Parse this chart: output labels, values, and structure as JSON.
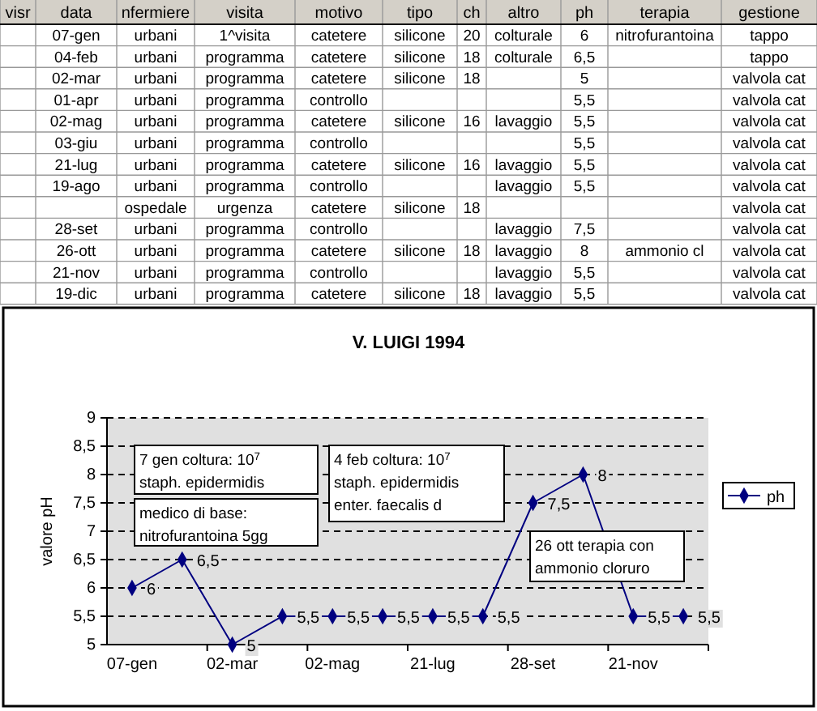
{
  "chart_data": [
    {
      "type": "other",
      "categories": [
        "visr",
        "data",
        "nfermiere",
        "visita",
        "motivo",
        "tipo",
        "ch",
        "altro",
        "ph",
        "terapia",
        "gestione"
      ],
      "cell_labels": [
        [
          null,
          "07-gen",
          "urbani",
          "1^visita",
          "catetere",
          "silicone",
          "20",
          "colturale",
          "6",
          "nitrofurantoina",
          "tappo"
        ],
        [
          null,
          "04-feb",
          "urbani",
          "programma",
          "catetere",
          "silicone",
          "18",
          "colturale",
          "6,5",
          null,
          "tappo"
        ],
        [
          null,
          "02-mar",
          "urbani",
          "programma",
          "catetere",
          "silicone",
          "18",
          null,
          "5",
          null,
          "valvola cat"
        ],
        [
          null,
          "01-apr",
          "urbani",
          "programma",
          "controllo",
          null,
          null,
          null,
          "5,5",
          null,
          "valvola cat"
        ],
        [
          null,
          "02-mag",
          "urbani",
          "programma",
          "catetere",
          "silicone",
          "16",
          "lavaggio",
          "5,5",
          null,
          "valvola cat"
        ],
        [
          null,
          "03-giu",
          "urbani",
          "programma",
          "controllo",
          null,
          null,
          null,
          "5,5",
          null,
          "valvola cat"
        ],
        [
          null,
          "21-lug",
          "urbani",
          "programma",
          "catetere",
          "silicone",
          "16",
          "lavaggio",
          "5,5",
          null,
          "valvola cat"
        ],
        [
          null,
          "19-ago",
          "urbani",
          "programma",
          "controllo",
          null,
          null,
          "lavaggio",
          "5,5",
          null,
          "valvola cat"
        ],
        [
          null,
          null,
          "ospedale",
          "urgenza",
          "catetere",
          "silicone",
          "18",
          null,
          null,
          null,
          "valvola cat"
        ],
        [
          null,
          "28-set",
          "urbani",
          "programma",
          "controllo",
          null,
          null,
          "lavaggio",
          "7,5",
          null,
          "valvola cat"
        ],
        [
          null,
          "26-ott",
          "urbani",
          "programma",
          "catetere",
          "silicone",
          "18",
          "lavaggio",
          "8",
          "ammonio cl",
          "valvola cat"
        ],
        [
          null,
          "21-nov",
          "urbani",
          "programma",
          "controllo",
          null,
          null,
          "lavaggio",
          "5,5",
          null,
          "valvola cat"
        ],
        [
          null,
          "19-dic",
          "urbani",
          "programma",
          "catetere",
          "silicone",
          "18",
          "lavaggio",
          "5,5",
          null,
          "valvola cat"
        ]
      ]
    },
    {
      "type": "line",
      "title": "V. LUIGI 1994",
      "ylabel": "valore pH",
      "categories": [
        "07-gen",
        null,
        "02-mar",
        null,
        "02-mag",
        null,
        "21-lug",
        null,
        "28-set",
        null,
        "21-nov",
        null
      ],
      "series": [
        {
          "name": "ph",
          "color": "#000080",
          "values": [
            6,
            6.5,
            5,
            5.5,
            5.5,
            5.5,
            5.5,
            5.5,
            7.5,
            8,
            5.5,
            5.5
          ],
          "value_labels": [
            "6",
            "6,5",
            "5",
            "5,5",
            "5,5",
            "5,5",
            "5,5",
            "5,5",
            "7,5",
            "8",
            "5,5",
            "5,5"
          ]
        }
      ],
      "ylim": [
        5,
        9
      ],
      "yticks": [
        5,
        {
          "value": 5.5,
          "label": "5,5"
        },
        6,
        {
          "value": 6.5,
          "label": "6,5"
        },
        7,
        {
          "value": 7.5,
          "label": "7,5"
        },
        8,
        {
          "value": 8.5,
          "label": "8,5"
        },
        9
      ],
      "grid": "y",
      "legend": "right",
      "marker": "diamond",
      "line_style": "solid",
      "annotations": [
        "7 gen coltura: 10$^{7}$\nstaph. epidermidis",
        "medico di base:\nnitrofurantoina 5gg",
        "4 feb coltura: 10$^{7}$\nstaph. epidermidis\nenter. faecalis d",
        "26 ott terapia con\nammonio cloruro"
      ]
    }
  ]
}
